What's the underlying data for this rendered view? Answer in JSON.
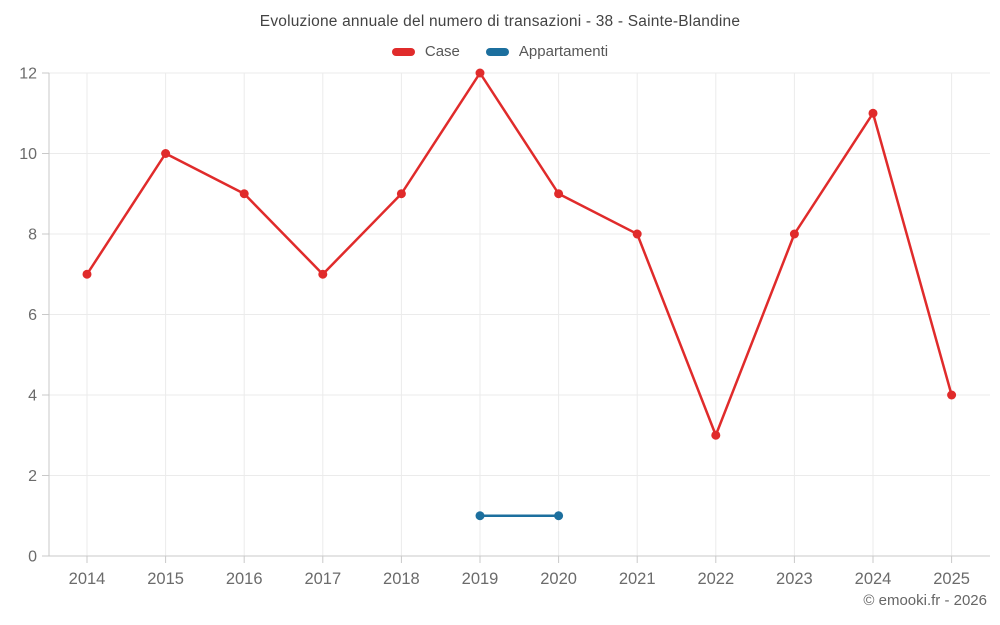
{
  "chart_data": {
    "type": "line",
    "title": "Evoluzione annuale del numero di transazioni - 38 - Sainte-Blandine",
    "categories": [
      "2014",
      "2015",
      "2016",
      "2017",
      "2018",
      "2019",
      "2020",
      "2021",
      "2022",
      "2023",
      "2024",
      "2025"
    ],
    "series": [
      {
        "name": "Case",
        "color": "#e02b2b",
        "values": [
          7,
          10,
          9,
          7,
          9,
          12,
          9,
          8,
          3,
          8,
          11,
          4
        ]
      },
      {
        "name": "Appartamenti",
        "color": "#1c6f9e",
        "values": [
          null,
          null,
          null,
          null,
          null,
          1,
          1,
          null,
          null,
          null,
          null,
          null
        ]
      }
    ],
    "xlabel": "",
    "ylabel": "",
    "ylim": [
      0,
      12
    ],
    "yticks": [
      0,
      2,
      4,
      6,
      8,
      10,
      12
    ],
    "grid": true,
    "legend_position": "top"
  },
  "footer": {
    "credit": "© emooki.fr - 2026"
  },
  "colors": {
    "background": "#ffffff",
    "grid": "#ebebeb",
    "axis": "#c9c9c9",
    "tick_label": "#6b6b6b",
    "title": "#434343",
    "legend_text": "#575757",
    "credit": "#666666"
  }
}
